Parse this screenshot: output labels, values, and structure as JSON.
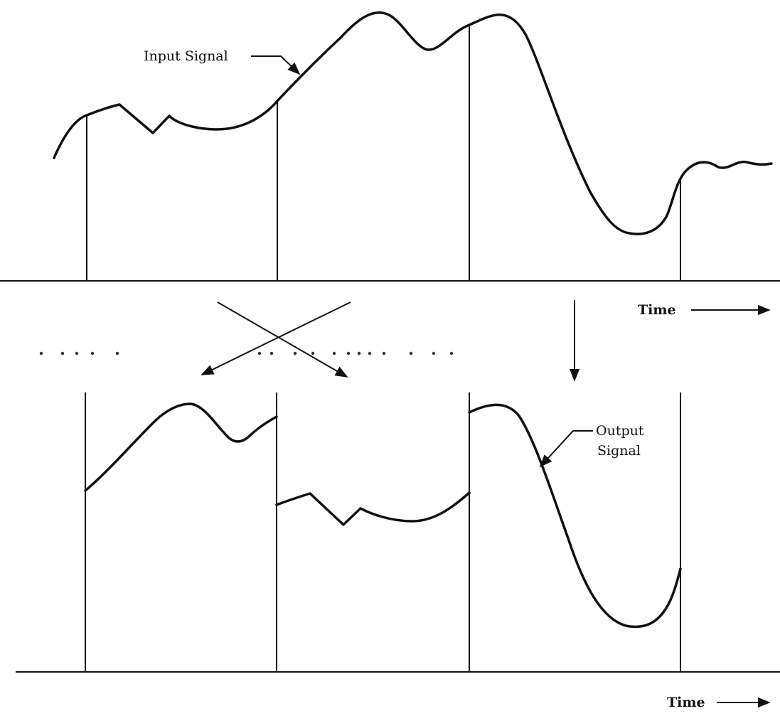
{
  "diagram": {
    "input_label": "Input Signal",
    "output_label_line1": "Output",
    "output_label_line2": "Signal",
    "time_label_top": "Time",
    "time_label_bottom": "Time"
  },
  "colors": {
    "ink": "#111111",
    "paper": "#ffffff",
    "dots": "#333333"
  }
}
